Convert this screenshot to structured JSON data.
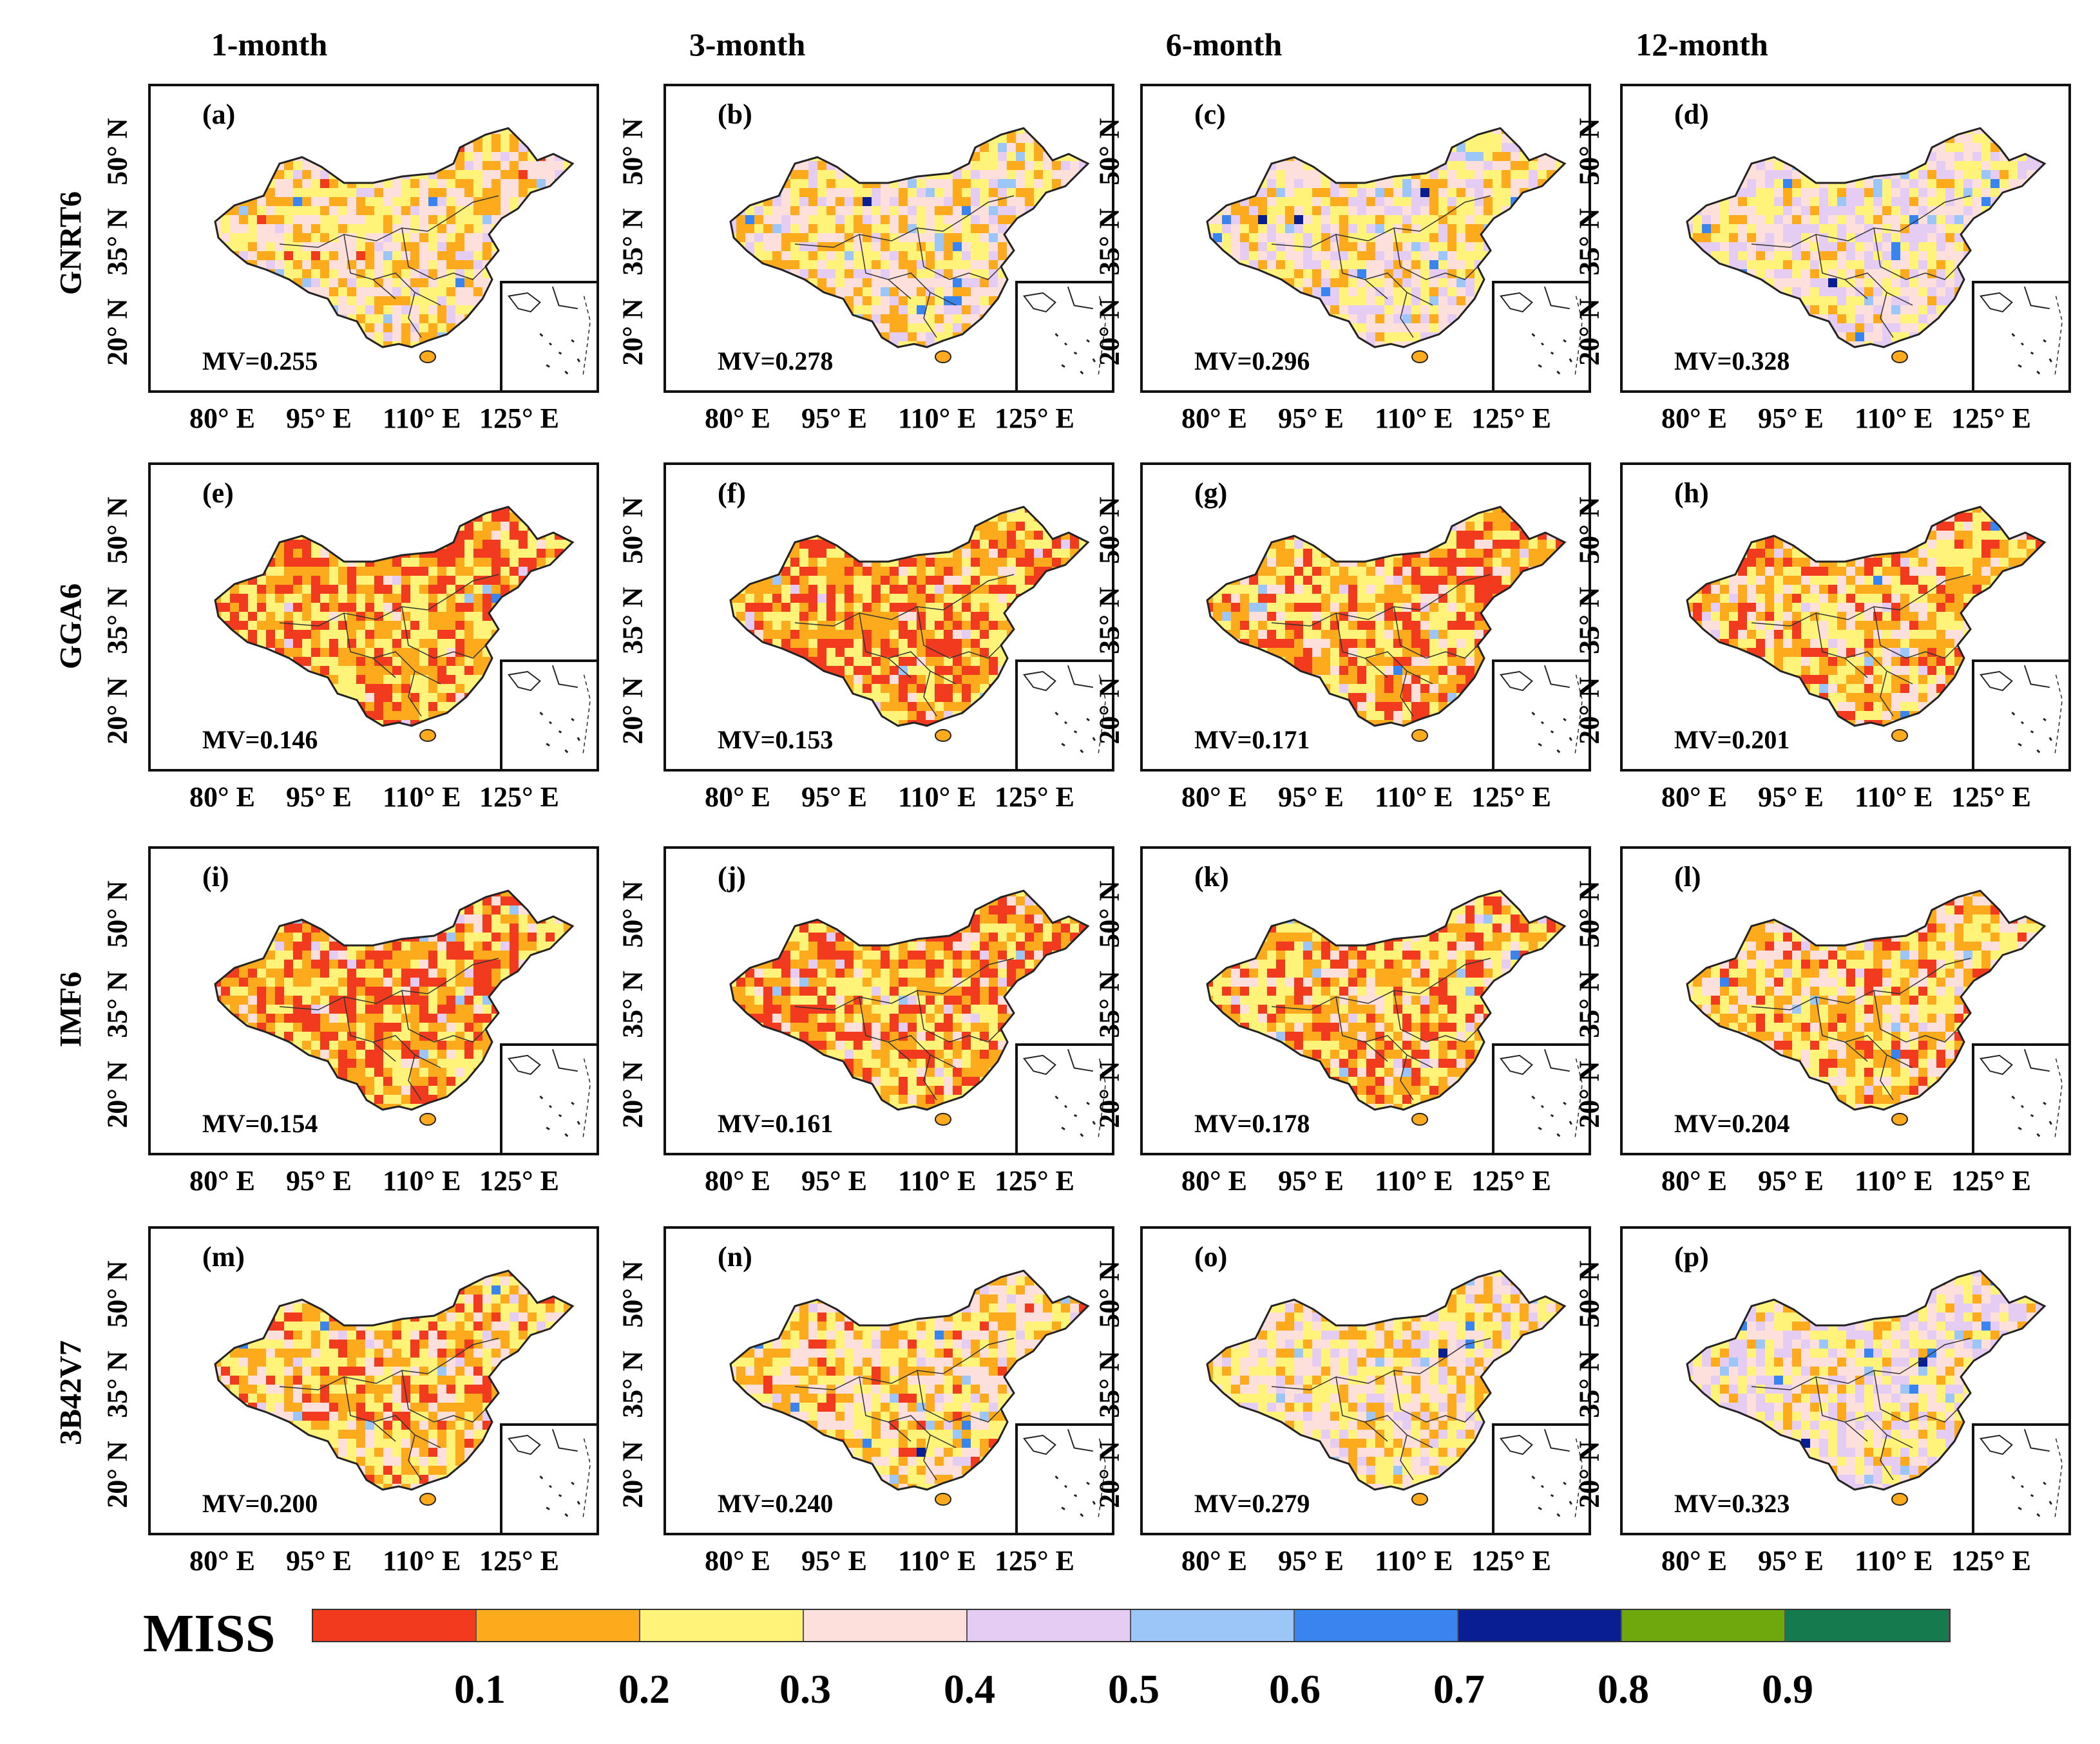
{
  "chart_data": {
    "type": "heatmap",
    "description_title": "MISS",
    "columns": [
      "1-month",
      "3-month",
      "6-month",
      "12-month"
    ],
    "rows": [
      "GNRT6",
      "GGA6",
      "IMF6",
      "3B42V7"
    ],
    "x_ticks": [
      "80° E",
      "95° E",
      "110° E",
      "125° E"
    ],
    "y_ticks": [
      "50° N",
      "35° N",
      "20° N"
    ],
    "panels": [
      {
        "label": "(a)",
        "row": "GNRT6",
        "col": "1-month",
        "mv": "MV=0.255",
        "value": 0.255
      },
      {
        "label": "(b)",
        "row": "GNRT6",
        "col": "3-month",
        "mv": "MV=0.278",
        "value": 0.278
      },
      {
        "label": "(c)",
        "row": "GNRT6",
        "col": "6-month",
        "mv": "MV=0.296",
        "value": 0.296
      },
      {
        "label": "(d)",
        "row": "GNRT6",
        "col": "12-month",
        "mv": "MV=0.328",
        "value": 0.328
      },
      {
        "label": "(e)",
        "row": "GGA6",
        "col": "1-month",
        "mv": "MV=0.146",
        "value": 0.146
      },
      {
        "label": "(f)",
        "row": "GGA6",
        "col": "3-month",
        "mv": "MV=0.153",
        "value": 0.153
      },
      {
        "label": "(g)",
        "row": "GGA6",
        "col": "6-month",
        "mv": "MV=0.171",
        "value": 0.171
      },
      {
        "label": "(h)",
        "row": "GGA6",
        "col": "12-month",
        "mv": "MV=0.201",
        "value": 0.201
      },
      {
        "label": "(i)",
        "row": "IMF6",
        "col": "1-month",
        "mv": "MV=0.154",
        "value": 0.154
      },
      {
        "label": "(j)",
        "row": "IMF6",
        "col": "3-month",
        "mv": "MV=0.161",
        "value": 0.161
      },
      {
        "label": "(k)",
        "row": "IMF6",
        "col": "6-month",
        "mv": "MV=0.178",
        "value": 0.178
      },
      {
        "label": "(l)",
        "row": "IMF6",
        "col": "12-month",
        "mv": "MV=0.204",
        "value": 0.204
      },
      {
        "label": "(m)",
        "row": "3B42V7",
        "col": "1-month",
        "mv": "MV=0.200",
        "value": 0.2
      },
      {
        "label": "(n)",
        "row": "3B42V7",
        "col": "3-month",
        "mv": "MV=0.240",
        "value": 0.24
      },
      {
        "label": "(o)",
        "row": "3B42V7",
        "col": "6-month",
        "mv": "MV=0.279",
        "value": 0.279
      },
      {
        "label": "(p)",
        "row": "3B42V7",
        "col": "12-month",
        "mv": "MV=0.323",
        "value": 0.323
      }
    ],
    "legend": {
      "title": "MISS",
      "colors": [
        "#f23a1f",
        "#fdab1c",
        "#fff37a",
        "#fde0dc",
        "#e4ccf2",
        "#9cc6f7",
        "#3a84f0",
        "#0a1e94",
        "#6fa80c",
        "#157a4d"
      ],
      "tick_labels": [
        "0.1",
        "0.2",
        "0.3",
        "0.4",
        "0.5",
        "0.6",
        "0.7",
        "0.8",
        "0.9"
      ]
    }
  }
}
